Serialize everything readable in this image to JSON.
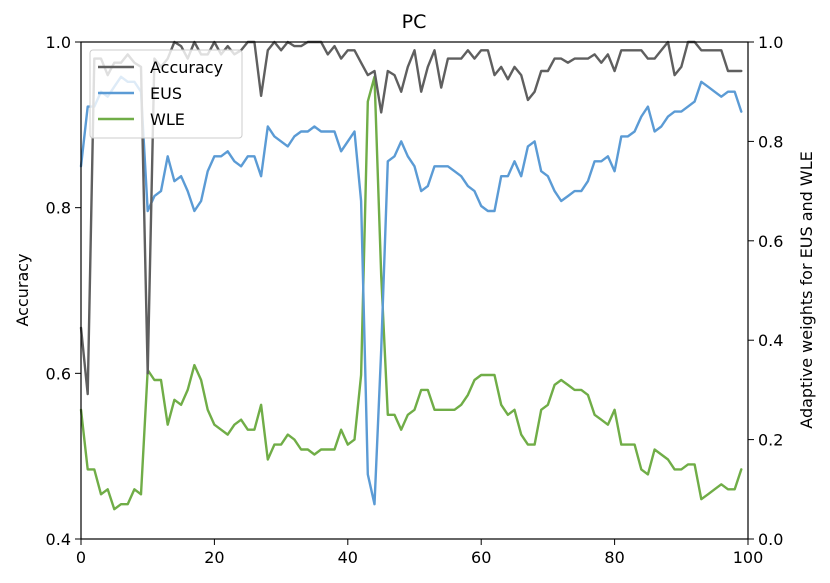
{
  "chart_data": {
    "type": "line",
    "title": "PC",
    "xlabel": "",
    "ylabel": "Accuracy",
    "y2label": "Adaptive weights for EUS and WLE",
    "xlim": [
      0,
      100
    ],
    "ylim": [
      0.4,
      1.0
    ],
    "y2lim": [
      0.0,
      1.0
    ],
    "x_ticks": [
      0,
      20,
      40,
      60,
      80,
      100
    ],
    "y_ticks": [
      0.4,
      0.6,
      0.8,
      1.0
    ],
    "y2_ticks": [
      0.0,
      0.2,
      0.4,
      0.6,
      0.8,
      1.0
    ],
    "legend_position": "upper-left",
    "grid": false,
    "series": [
      {
        "name": "Accuracy",
        "axis": "left",
        "color": "#5f5f5f",
        "x": [
          0,
          1,
          2,
          3,
          4,
          5,
          6,
          7,
          8,
          9,
          10,
          11,
          12,
          13,
          14,
          15,
          16,
          17,
          18,
          19,
          20,
          21,
          22,
          23,
          24,
          25,
          26,
          27,
          28,
          29,
          30,
          31,
          32,
          33,
          34,
          35,
          36,
          37,
          38,
          39,
          40,
          41,
          42,
          43,
          44,
          45,
          46,
          47,
          48,
          49,
          50,
          51,
          52,
          53,
          54,
          55,
          56,
          57,
          58,
          59,
          60,
          61,
          62,
          63,
          64,
          65,
          66,
          67,
          68,
          69,
          70,
          71,
          72,
          73,
          74,
          75,
          76,
          77,
          78,
          79,
          80,
          81,
          82,
          83,
          84,
          85,
          86,
          87,
          88,
          89,
          90,
          91,
          92,
          93,
          94,
          95,
          96,
          97,
          98,
          99
        ],
        "values": [
          0.655,
          0.575,
          0.98,
          0.98,
          0.96,
          0.975,
          0.975,
          0.985,
          0.975,
          0.97,
          0.6,
          0.98,
          0.97,
          0.98,
          1.0,
          0.995,
          0.98,
          1.0,
          0.985,
          0.985,
          1.0,
          0.985,
          0.995,
          0.985,
          0.99,
          1.0,
          1.0,
          0.935,
          0.99,
          1.0,
          0.99,
          1.0,
          0.995,
          0.995,
          1.0,
          1.0,
          1.0,
          0.985,
          0.995,
          0.98,
          0.99,
          0.99,
          0.975,
          0.96,
          0.965,
          0.915,
          0.965,
          0.96,
          0.94,
          0.97,
          0.99,
          0.94,
          0.97,
          0.99,
          0.945,
          0.98,
          0.98,
          0.98,
          0.99,
          0.98,
          0.99,
          0.99,
          0.96,
          0.97,
          0.955,
          0.97,
          0.96,
          0.93,
          0.94,
          0.965,
          0.965,
          0.98,
          0.98,
          0.975,
          0.98,
          0.98,
          0.98,
          0.985,
          0.975,
          0.985,
          0.965,
          0.99,
          0.99,
          0.99,
          0.99,
          0.98,
          0.98,
          0.99,
          1.0,
          0.96,
          0.97,
          1.0,
          1.0,
          0.99,
          0.99,
          0.99,
          0.99,
          0.965,
          0.965,
          0.965
        ]
      },
      {
        "name": "EUS",
        "axis": "right",
        "color": "#5b9bd5",
        "x": [
          0,
          1,
          2,
          3,
          4,
          5,
          6,
          7,
          8,
          9,
          10,
          11,
          12,
          13,
          14,
          15,
          16,
          17,
          18,
          19,
          20,
          21,
          22,
          23,
          24,
          25,
          26,
          27,
          28,
          29,
          30,
          31,
          32,
          33,
          34,
          35,
          36,
          37,
          38,
          39,
          40,
          41,
          42,
          43,
          44,
          45,
          46,
          47,
          48,
          49,
          50,
          51,
          52,
          53,
          54,
          55,
          56,
          57,
          58,
          59,
          60,
          61,
          62,
          63,
          64,
          65,
          66,
          67,
          68,
          69,
          70,
          71,
          72,
          73,
          74,
          75,
          76,
          77,
          78,
          79,
          80,
          81,
          82,
          83,
          84,
          85,
          86,
          87,
          88,
          89,
          90,
          91,
          92,
          93,
          94,
          95,
          96,
          97,
          98,
          99
        ],
        "values": [
          0.75,
          0.87,
          0.87,
          0.9,
          0.89,
          0.91,
          0.93,
          0.92,
          0.92,
          0.9,
          0.66,
          0.69,
          0.7,
          0.77,
          0.72,
          0.73,
          0.7,
          0.66,
          0.68,
          0.74,
          0.77,
          0.77,
          0.78,
          0.76,
          0.75,
          0.77,
          0.77,
          0.73,
          0.83,
          0.81,
          0.8,
          0.79,
          0.81,
          0.82,
          0.82,
          0.83,
          0.82,
          0.82,
          0.82,
          0.78,
          0.8,
          0.82,
          0.68,
          0.13,
          0.07,
          0.38,
          0.76,
          0.77,
          0.8,
          0.77,
          0.75,
          0.7,
          0.71,
          0.75,
          0.75,
          0.75,
          0.74,
          0.73,
          0.71,
          0.7,
          0.67,
          0.66,
          0.66,
          0.73,
          0.73,
          0.76,
          0.73,
          0.79,
          0.8,
          0.74,
          0.73,
          0.7,
          0.68,
          0.69,
          0.7,
          0.7,
          0.72,
          0.76,
          0.76,
          0.77,
          0.74,
          0.81,
          0.81,
          0.82,
          0.85,
          0.87,
          0.82,
          0.83,
          0.85,
          0.86,
          0.86,
          0.87,
          0.88,
          0.92,
          0.91,
          0.9,
          0.89,
          0.9,
          0.9,
          0.86
        ]
      },
      {
        "name": "WLE",
        "axis": "right",
        "color": "#70ad47",
        "x": [
          0,
          1,
          2,
          3,
          4,
          5,
          6,
          7,
          8,
          9,
          10,
          11,
          12,
          13,
          14,
          15,
          16,
          17,
          18,
          19,
          20,
          21,
          22,
          23,
          24,
          25,
          26,
          27,
          28,
          29,
          30,
          31,
          32,
          33,
          34,
          35,
          36,
          37,
          38,
          39,
          40,
          41,
          42,
          43,
          44,
          45,
          46,
          47,
          48,
          49,
          50,
          51,
          52,
          53,
          54,
          55,
          56,
          57,
          58,
          59,
          60,
          61,
          62,
          63,
          64,
          65,
          66,
          67,
          68,
          69,
          70,
          71,
          72,
          73,
          74,
          75,
          76,
          77,
          78,
          79,
          80,
          81,
          82,
          83,
          84,
          85,
          86,
          87,
          88,
          89,
          90,
          91,
          92,
          93,
          94,
          95,
          96,
          97,
          98,
          99
        ],
        "values": [
          0.26,
          0.14,
          0.14,
          0.09,
          0.1,
          0.06,
          0.07,
          0.07,
          0.1,
          0.09,
          0.34,
          0.32,
          0.32,
          0.23,
          0.28,
          0.27,
          0.3,
          0.35,
          0.32,
          0.26,
          0.23,
          0.22,
          0.21,
          0.23,
          0.24,
          0.22,
          0.22,
          0.27,
          0.16,
          0.19,
          0.19,
          0.21,
          0.2,
          0.18,
          0.18,
          0.17,
          0.18,
          0.18,
          0.18,
          0.22,
          0.19,
          0.2,
          0.33,
          0.88,
          0.93,
          0.53,
          0.25,
          0.25,
          0.22,
          0.25,
          0.26,
          0.3,
          0.3,
          0.26,
          0.26,
          0.26,
          0.26,
          0.27,
          0.29,
          0.32,
          0.33,
          0.33,
          0.33,
          0.27,
          0.25,
          0.26,
          0.21,
          0.19,
          0.19,
          0.26,
          0.27,
          0.31,
          0.32,
          0.31,
          0.3,
          0.3,
          0.29,
          0.25,
          0.24,
          0.23,
          0.26,
          0.19,
          0.19,
          0.19,
          0.14,
          0.13,
          0.18,
          0.17,
          0.16,
          0.14,
          0.14,
          0.15,
          0.15,
          0.08,
          0.09,
          0.1,
          0.11,
          0.1,
          0.1,
          0.14
        ]
      }
    ]
  }
}
